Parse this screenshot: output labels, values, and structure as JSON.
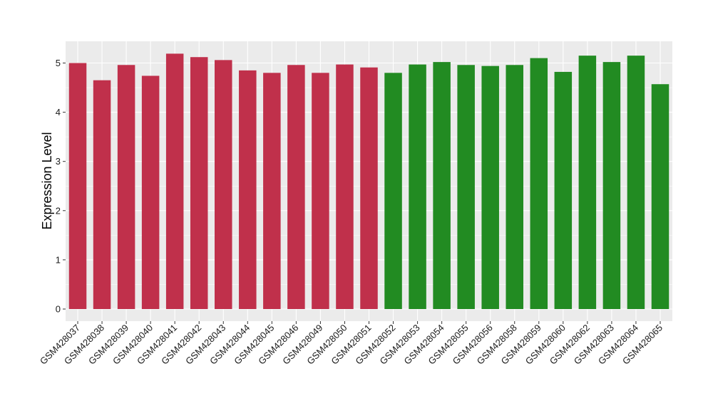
{
  "chart_data": {
    "type": "bar",
    "title": "",
    "xlabel": "",
    "ylabel": "Expression Level",
    "ylim": [
      0,
      5.4
    ],
    "yticks": [
      0,
      1,
      2,
      3,
      4,
      5
    ],
    "grid": true,
    "background": "#EBEBEB",
    "gridline_color": "#FFFFFF",
    "group_colors": [
      "#C0304B",
      "#228B22"
    ],
    "categories": [
      "GSM428037",
      "GSM428038",
      "GSM428039",
      "GSM428040",
      "GSM428041",
      "GSM428042",
      "GSM428043",
      "GSM428044",
      "GSM428045",
      "GSM428046",
      "GSM428049",
      "GSM428050",
      "GSM428051",
      "GSM428052",
      "GSM428053",
      "GSM428054",
      "GSM428055",
      "GSM428056",
      "GSM428058",
      "GSM428059",
      "GSM428060",
      "GSM428062",
      "GSM428063",
      "GSM428064",
      "GSM428065"
    ],
    "values": [
      5.0,
      4.65,
      4.96,
      4.74,
      5.19,
      5.12,
      5.06,
      4.85,
      4.8,
      4.96,
      4.8,
      4.97,
      4.91,
      4.8,
      4.97,
      5.02,
      4.96,
      4.94,
      4.96,
      5.1,
      4.82,
      5.15,
      5.02,
      5.15,
      4.57
    ],
    "groups": [
      0,
      0,
      0,
      0,
      0,
      0,
      0,
      0,
      0,
      0,
      0,
      0,
      0,
      1,
      1,
      1,
      1,
      1,
      1,
      1,
      1,
      1,
      1,
      1,
      1
    ]
  }
}
